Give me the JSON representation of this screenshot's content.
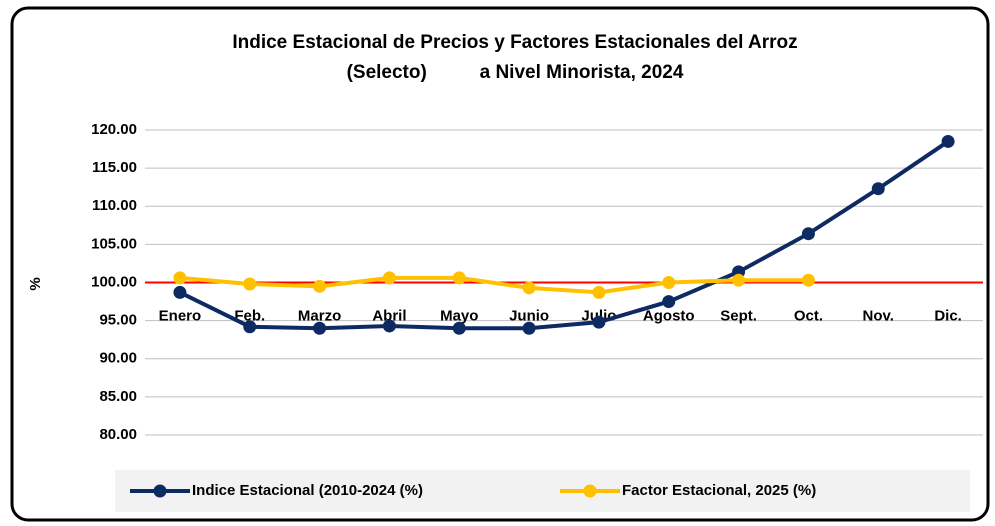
{
  "chart_data": {
    "type": "line",
    "title": [
      "Indice Estacional de Precios y Factores Estacionales del Arroz",
      "(Selecto)          a Nivel Minorista, 2024"
    ],
    "ylabel": "%",
    "categories": [
      "Enero",
      "Feb.",
      "Marzo",
      "Abril",
      "Mayo",
      "Junio",
      "Julio",
      "Agosto",
      "Sept.",
      "Oct.",
      "Nov.",
      "Dic."
    ],
    "series": [
      {
        "name": "Indice Estacional (2010-2024 (%)",
        "color": "#0e2a63",
        "values": [
          98.7,
          94.2,
          94.0,
          94.3,
          94.0,
          94.0,
          94.8,
          97.5,
          101.4,
          106.4,
          112.3,
          118.5
        ]
      },
      {
        "name": "Factor Estacional, 2025 (%)",
        "color": "#ffc000",
        "values": [
          100.6,
          99.8,
          99.5,
          100.6,
          100.6,
          99.3,
          98.7,
          100.0,
          100.3,
          100.3,
          null,
          null
        ]
      }
    ],
    "reference_line": {
      "value": 100,
      "color": "#ff0000"
    },
    "ylim": [
      80,
      120
    ],
    "yticks": [
      {
        "value": 80,
        "label": "80.00"
      },
      {
        "value": 85,
        "label": "85.00"
      },
      {
        "value": 90,
        "label": "90.00"
      },
      {
        "value": 95,
        "label": "95.00"
      },
      {
        "value": 100,
        "label": "100.00"
      },
      {
        "value": 105,
        "label": "105.00"
      },
      {
        "value": 110,
        "label": "110.00"
      },
      {
        "value": 115,
        "label": "115.00"
      },
      {
        "value": 120,
        "label": "120.00"
      }
    ],
    "grid": true
  }
}
